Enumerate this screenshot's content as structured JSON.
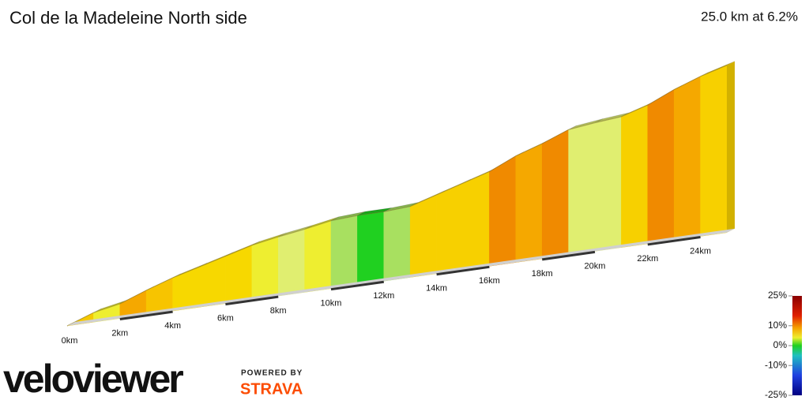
{
  "chart_data": {
    "type": "profile",
    "title": "Col de la Madeleine North side",
    "subtitle": "25.0 km at 6.2%",
    "x": [
      0,
      1,
      2,
      3,
      4,
      5,
      6,
      7,
      8,
      9,
      10,
      11,
      12,
      13,
      14,
      15,
      16,
      17,
      18,
      19,
      20,
      21,
      22,
      23,
      24,
      25
    ],
    "values": [
      450,
      538,
      585,
      676,
      757,
      822,
      888,
      954,
      998,
      1034,
      1078,
      1092,
      1092,
      1107,
      1180,
      1253,
      1326,
      1436,
      1516,
      1611,
      1640,
      1662,
      1735,
      1844,
      1932,
      2000
    ],
    "colors": [
      "#f5c800",
      "#eeee30",
      "#f5a800",
      "#f7c400",
      "#f7d800",
      "#f7d800",
      "#f7d800",
      "#eeee30",
      "#e0ee70",
      "#eeee30",
      "#a8e060",
      "#20d020",
      "#a8e060",
      "#f7d000",
      "#f7d000",
      "#f7d000",
      "#f08a00",
      "#f5a800",
      "#f08a00",
      "#e0ee70",
      "#e0ee70",
      "#f7d000",
      "#f08a00",
      "#f5a800",
      "#f7d000"
    ],
    "xlim": [
      0,
      25
    ],
    "ylim": [
      450,
      2000
    ],
    "xticks": [
      {
        "value": 0,
        "label": "0km"
      },
      {
        "value": 2,
        "label": "2km"
      },
      {
        "value": 4,
        "label": "4km"
      },
      {
        "value": 6,
        "label": "6km"
      },
      {
        "value": 8,
        "label": "8km"
      },
      {
        "value": 10,
        "label": "10km"
      },
      {
        "value": 12,
        "label": "12km"
      },
      {
        "value": 14,
        "label": "14km"
      },
      {
        "value": 16,
        "label": "16km"
      },
      {
        "value": 18,
        "label": "18km"
      },
      {
        "value": 20,
        "label": "20km"
      },
      {
        "value": 22,
        "label": "22km"
      },
      {
        "value": 24,
        "label": "24km"
      }
    ],
    "color_scale": {
      "lim": [
        -25,
        25
      ],
      "ticks": [
        {
          "value": 25,
          "label": "25%"
        },
        {
          "value": 10,
          "label": "10%"
        },
        {
          "value": 0,
          "label": "0%"
        },
        {
          "value": -10,
          "label": "-10%"
        },
        {
          "value": -25,
          "label": "-25%"
        }
      ]
    }
  },
  "branding": {
    "logo": "veloviewer",
    "powered": "POWERED BY",
    "strava": "STRAVA"
  }
}
